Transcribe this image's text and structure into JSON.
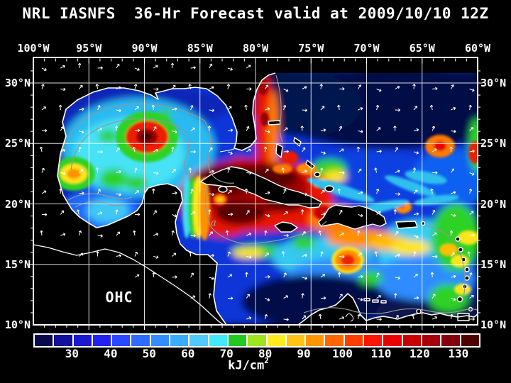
{
  "title": "NRL IASNFS  36-Hr Forecast valid at 2009/10/10 12Z",
  "axes": {
    "top_longitude_labels": [
      "100°W",
      "95°W",
      "90°W",
      "85°W",
      "80°W",
      "75°W",
      "70°W",
      "65°W",
      "60°W"
    ],
    "left_latitude_labels": [
      "30°N",
      "25°N",
      "20°N",
      "15°N",
      "10°N"
    ],
    "right_latitude_labels": [
      "30°N",
      "25°N",
      "20°N",
      "15°N",
      "10°N"
    ]
  },
  "map": {
    "field_label": "OHC",
    "annotation_a": "a",
    "colors": {
      "background": "#000000",
      "land": "#000000",
      "coastline": "#ffffff",
      "gridline": "#ffffff",
      "contour": "#959595",
      "arrow": "#ffffff",
      "text": "#ffffff"
    }
  },
  "colorbar": {
    "cells": [
      "#08084E",
      "#10109B",
      "#1919CE",
      "#2222F0",
      "#2A48FF",
      "#2F6BFF",
      "#348DFF",
      "#3AACFF",
      "#4FC9FF",
      "#41EAFF",
      "#23C923",
      "#A0E41E",
      "#FFEC1C",
      "#FFC313",
      "#FF9500",
      "#FF6600",
      "#FF3E00",
      "#FF1600",
      "#E90000",
      "#CA0000",
      "#A70008",
      "#85000D",
      "#4F0000"
    ],
    "tick_labels": [
      "30",
      "40",
      "50",
      "60",
      "70",
      "80",
      "90",
      "100",
      "110",
      "120",
      "130"
    ],
    "unit_base": "kJ/cm",
    "unit_exponent": "2"
  },
  "chart_data": {
    "type": "heatmap",
    "title": "NRL IASNFS 36-Hr Forecast valid at 2009/10/10 12Z",
    "variable": "OHC (Ocean Heat Content)",
    "unit": "kJ/cm²",
    "x_axis": {
      "ticks": [
        "100°W",
        "95°W",
        "90°W",
        "85°W",
        "80°W",
        "75°W",
        "70°W",
        "65°W",
        "60°W"
      ]
    },
    "y_axis": {
      "ticks": [
        "30°N",
        "25°N",
        "20°N",
        "15°N",
        "10°N"
      ]
    },
    "colorbar": {
      "tick_values": [
        30,
        40,
        50,
        60,
        70,
        80,
        90,
        100,
        110,
        120,
        130
      ],
      "cell_step": 5,
      "approx_range": [
        25,
        140
      ]
    },
    "readings": [
      {
        "location": "NW Caribbean warm pool 85W-78W 16N-22N",
        "value_kJ_cm2": "120 to >135"
      },
      {
        "location": "Gulf of Mexico interior",
        "value_kJ_cm2": "50-70"
      },
      {
        "location": "Warm-core eddy near 87.5W 25.5N",
        "value_kJ_cm2": "105-130"
      },
      {
        "location": "Eddy near 96.5W 22.5N",
        "value_kJ_cm2": "75-95"
      },
      {
        "location": "Loop Current / Straits of Florida / Gulf Stream along Florida",
        "value_kJ_cm2": "100-125"
      },
      {
        "location": "Atlantic north of 25N",
        "value_kJ_cm2": "25-50"
      },
      {
        "location": "Colombia Basin eddy near 72.5W 14.5N",
        "value_kJ_cm2": "90-110"
      },
      {
        "location": "South Caribbean near Venezuela coast",
        "value_kJ_cm2": "25-40"
      },
      {
        "location": "Eastern Caribbean near Lesser Antilles",
        "value_kJ_cm2": "60-95"
      }
    ],
    "overlays": [
      "white current-vector arrows on regular grid",
      "gray OHC contour lines",
      "white coastlines",
      "5-degree lat-lon grid",
      "black land / no-data mask"
    ]
  }
}
